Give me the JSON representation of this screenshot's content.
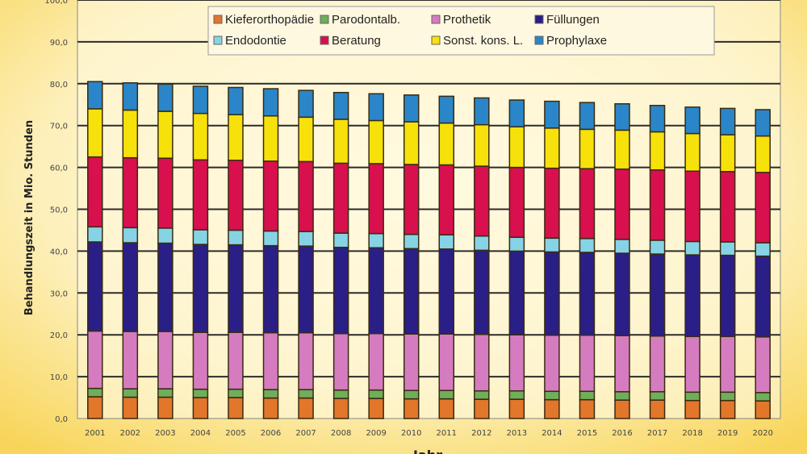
{
  "chart_data": {
    "type": "bar",
    "stacked": true,
    "title": "",
    "xlabel": "Jahr",
    "ylabel": "Behandlungszeit in Mio. Stunden",
    "ylim": [
      0,
      100
    ],
    "yticks": [
      "0,0",
      "10,0",
      "20,0",
      "30,0",
      "40,0",
      "50,0",
      "60,0",
      "70,0",
      "80,0",
      "90,0",
      "100,0"
    ],
    "grid": true,
    "legend_position": "top",
    "categories": [
      "2001",
      "2002",
      "2003",
      "2004",
      "2005",
      "2006",
      "2007",
      "2008",
      "2009",
      "2010",
      "2011",
      "2012",
      "2013",
      "2014",
      "2015",
      "2016",
      "2017",
      "2018",
      "2019",
      "2020"
    ],
    "series": [
      {
        "name": "Kieferorthopädie",
        "color": "#e2762a",
        "values": [
          5.2,
          5.1,
          5.1,
          5.0,
          5.0,
          4.9,
          4.9,
          4.8,
          4.8,
          4.7,
          4.7,
          4.6,
          4.6,
          4.5,
          4.5,
          4.4,
          4.4,
          4.3,
          4.3,
          4.2
        ]
      },
      {
        "name": "Parodontalb.",
        "color": "#6fae5a",
        "values": [
          2.0,
          2.0,
          2.0,
          2.0,
          2.0,
          2.0,
          2.0,
          2.0,
          2.0,
          2.0,
          2.0,
          2.0,
          2.0,
          2.0,
          2.0,
          2.0,
          2.0,
          2.0,
          2.0,
          2.0
        ]
      },
      {
        "name": "Prothetik",
        "color": "#d57cc0",
        "values": [
          13.7,
          13.7,
          13.7,
          13.6,
          13.6,
          13.6,
          13.6,
          13.5,
          13.5,
          13.5,
          13.5,
          13.5,
          13.4,
          13.4,
          13.4,
          13.4,
          13.3,
          13.3,
          13.3,
          13.3
        ]
      },
      {
        "name": "Füllungen",
        "color": "#2a1f86",
        "values": [
          21.3,
          21.2,
          21.1,
          21.0,
          20.9,
          20.8,
          20.7,
          20.6,
          20.5,
          20.4,
          20.3,
          20.1,
          20.0,
          19.9,
          19.8,
          19.7,
          19.6,
          19.5,
          19.4,
          19.3
        ]
      },
      {
        "name": "Endodontie",
        "color": "#86d3e6",
        "values": [
          3.6,
          3.6,
          3.6,
          3.5,
          3.5,
          3.5,
          3.5,
          3.4,
          3.4,
          3.4,
          3.4,
          3.4,
          3.3,
          3.3,
          3.3,
          3.3,
          3.3,
          3.2,
          3.2,
          3.2
        ]
      },
      {
        "name": "Beratung",
        "color": "#d8104e",
        "values": [
          16.7,
          16.7,
          16.7,
          16.7,
          16.7,
          16.7,
          16.7,
          16.7,
          16.7,
          16.7,
          16.7,
          16.7,
          16.7,
          16.7,
          16.7,
          16.8,
          16.8,
          16.8,
          16.8,
          16.8
        ]
      },
      {
        "name": "Sonst. kons. L.",
        "color": "#f7e10a",
        "values": [
          11.5,
          11.4,
          11.2,
          11.1,
          10.9,
          10.8,
          10.6,
          10.5,
          10.3,
          10.2,
          10.0,
          9.9,
          9.7,
          9.6,
          9.4,
          9.3,
          9.1,
          9.0,
          8.8,
          8.7
        ]
      },
      {
        "name": "Prophylaxe",
        "color": "#2a86c8",
        "values": [
          6.5,
          6.5,
          6.5,
          6.5,
          6.5,
          6.5,
          6.4,
          6.4,
          6.4,
          6.4,
          6.4,
          6.4,
          6.4,
          6.4,
          6.4,
          6.3,
          6.3,
          6.3,
          6.3,
          6.3
        ]
      }
    ]
  }
}
